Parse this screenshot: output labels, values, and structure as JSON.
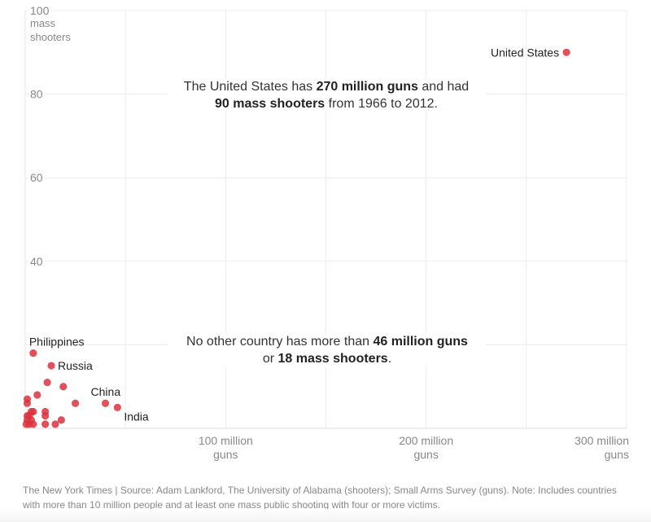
{
  "chart_data": {
    "type": "scatter",
    "title": "",
    "xlabel": "guns",
    "ylabel": "mass shooters",
    "xlim": [
      0,
      300
    ],
    "ylim": [
      0,
      100
    ],
    "x_unit": "million guns",
    "grid": true,
    "x_ticks": [
      {
        "value": 100,
        "line1": "100 million",
        "line2": "guns"
      },
      {
        "value": 200,
        "line1": "200 million",
        "line2": "guns"
      },
      {
        "value": 300,
        "line1": "300 million",
        "line2": "guns"
      }
    ],
    "x_gridlines": [
      50,
      100,
      150,
      200,
      250,
      300
    ],
    "y_ticks": [
      {
        "value": 100,
        "label": "100"
      },
      {
        "value": 80,
        "label": "80"
      },
      {
        "value": 60,
        "label": "60"
      },
      {
        "value": 40,
        "label": "40"
      }
    ],
    "y_gridlines": [
      20,
      40,
      60,
      80,
      100
    ],
    "y_unit_label": [
      "mass",
      "shooters"
    ],
    "point_color": "#dc3340",
    "points": [
      {
        "label": "United States",
        "x": 270,
        "y": 90,
        "label_pos": "left"
      },
      {
        "label": "Philippines",
        "x": 4,
        "y": 18,
        "label_pos": "above"
      },
      {
        "label": "Russia",
        "x": 13,
        "y": 15,
        "label_pos": "right"
      },
      {
        "label": "China",
        "x": 40,
        "y": 6,
        "label_pos": "above"
      },
      {
        "label": "India",
        "x": 46,
        "y": 5,
        "label_pos": "below-right"
      },
      {
        "label": "",
        "x": 11,
        "y": 11
      },
      {
        "label": "",
        "x": 19,
        "y": 10
      },
      {
        "label": "",
        "x": 6,
        "y": 8
      },
      {
        "label": "",
        "x": 1,
        "y": 7
      },
      {
        "label": "",
        "x": 1,
        "y": 6
      },
      {
        "label": "",
        "x": 25,
        "y": 6
      },
      {
        "label": "",
        "x": 3,
        "y": 4
      },
      {
        "label": "",
        "x": 4,
        "y": 4
      },
      {
        "label": "",
        "x": 10,
        "y": 4
      },
      {
        "label": "",
        "x": 1,
        "y": 3
      },
      {
        "label": "",
        "x": 2,
        "y": 3
      },
      {
        "label": "",
        "x": 10,
        "y": 3
      },
      {
        "label": "",
        "x": 1,
        "y": 2
      },
      {
        "label": "",
        "x": 3,
        "y": 2
      },
      {
        "label": "",
        "x": 18,
        "y": 2
      },
      {
        "label": "",
        "x": 0.5,
        "y": 1
      },
      {
        "label": "",
        "x": 2,
        "y": 1
      },
      {
        "label": "",
        "x": 4,
        "y": 1
      },
      {
        "label": "",
        "x": 10,
        "y": 1
      },
      {
        "label": "",
        "x": 15,
        "y": 1
      }
    ],
    "annotations": [
      {
        "id": "us",
        "line1": [
          {
            "text": "The United States has ",
            "bold": false
          },
          {
            "text": "270 million guns",
            "bold": true
          },
          {
            "text": " and had",
            "bold": false
          }
        ],
        "line2": [
          {
            "text": "90 mass shooters",
            "bold": true
          },
          {
            "text": " from 1966 to 2012.",
            "bold": false
          }
        ]
      },
      {
        "id": "others",
        "line1": [
          {
            "text": "No other country has more than ",
            "bold": false
          },
          {
            "text": "46 million guns",
            "bold": true
          }
        ],
        "line2": [
          {
            "text": "or ",
            "bold": false
          },
          {
            "text": "18 mass shooters",
            "bold": true
          },
          {
            "text": ".",
            "bold": false
          }
        ]
      }
    ]
  },
  "footer": {
    "text": "The New York Times  |  Source: Adam Lankford, The University of Alabama (shooters); Small Arms Survey (guns). Note: Includes countries with more than 10 million people and at least one mass public shooting with four or more victims."
  }
}
